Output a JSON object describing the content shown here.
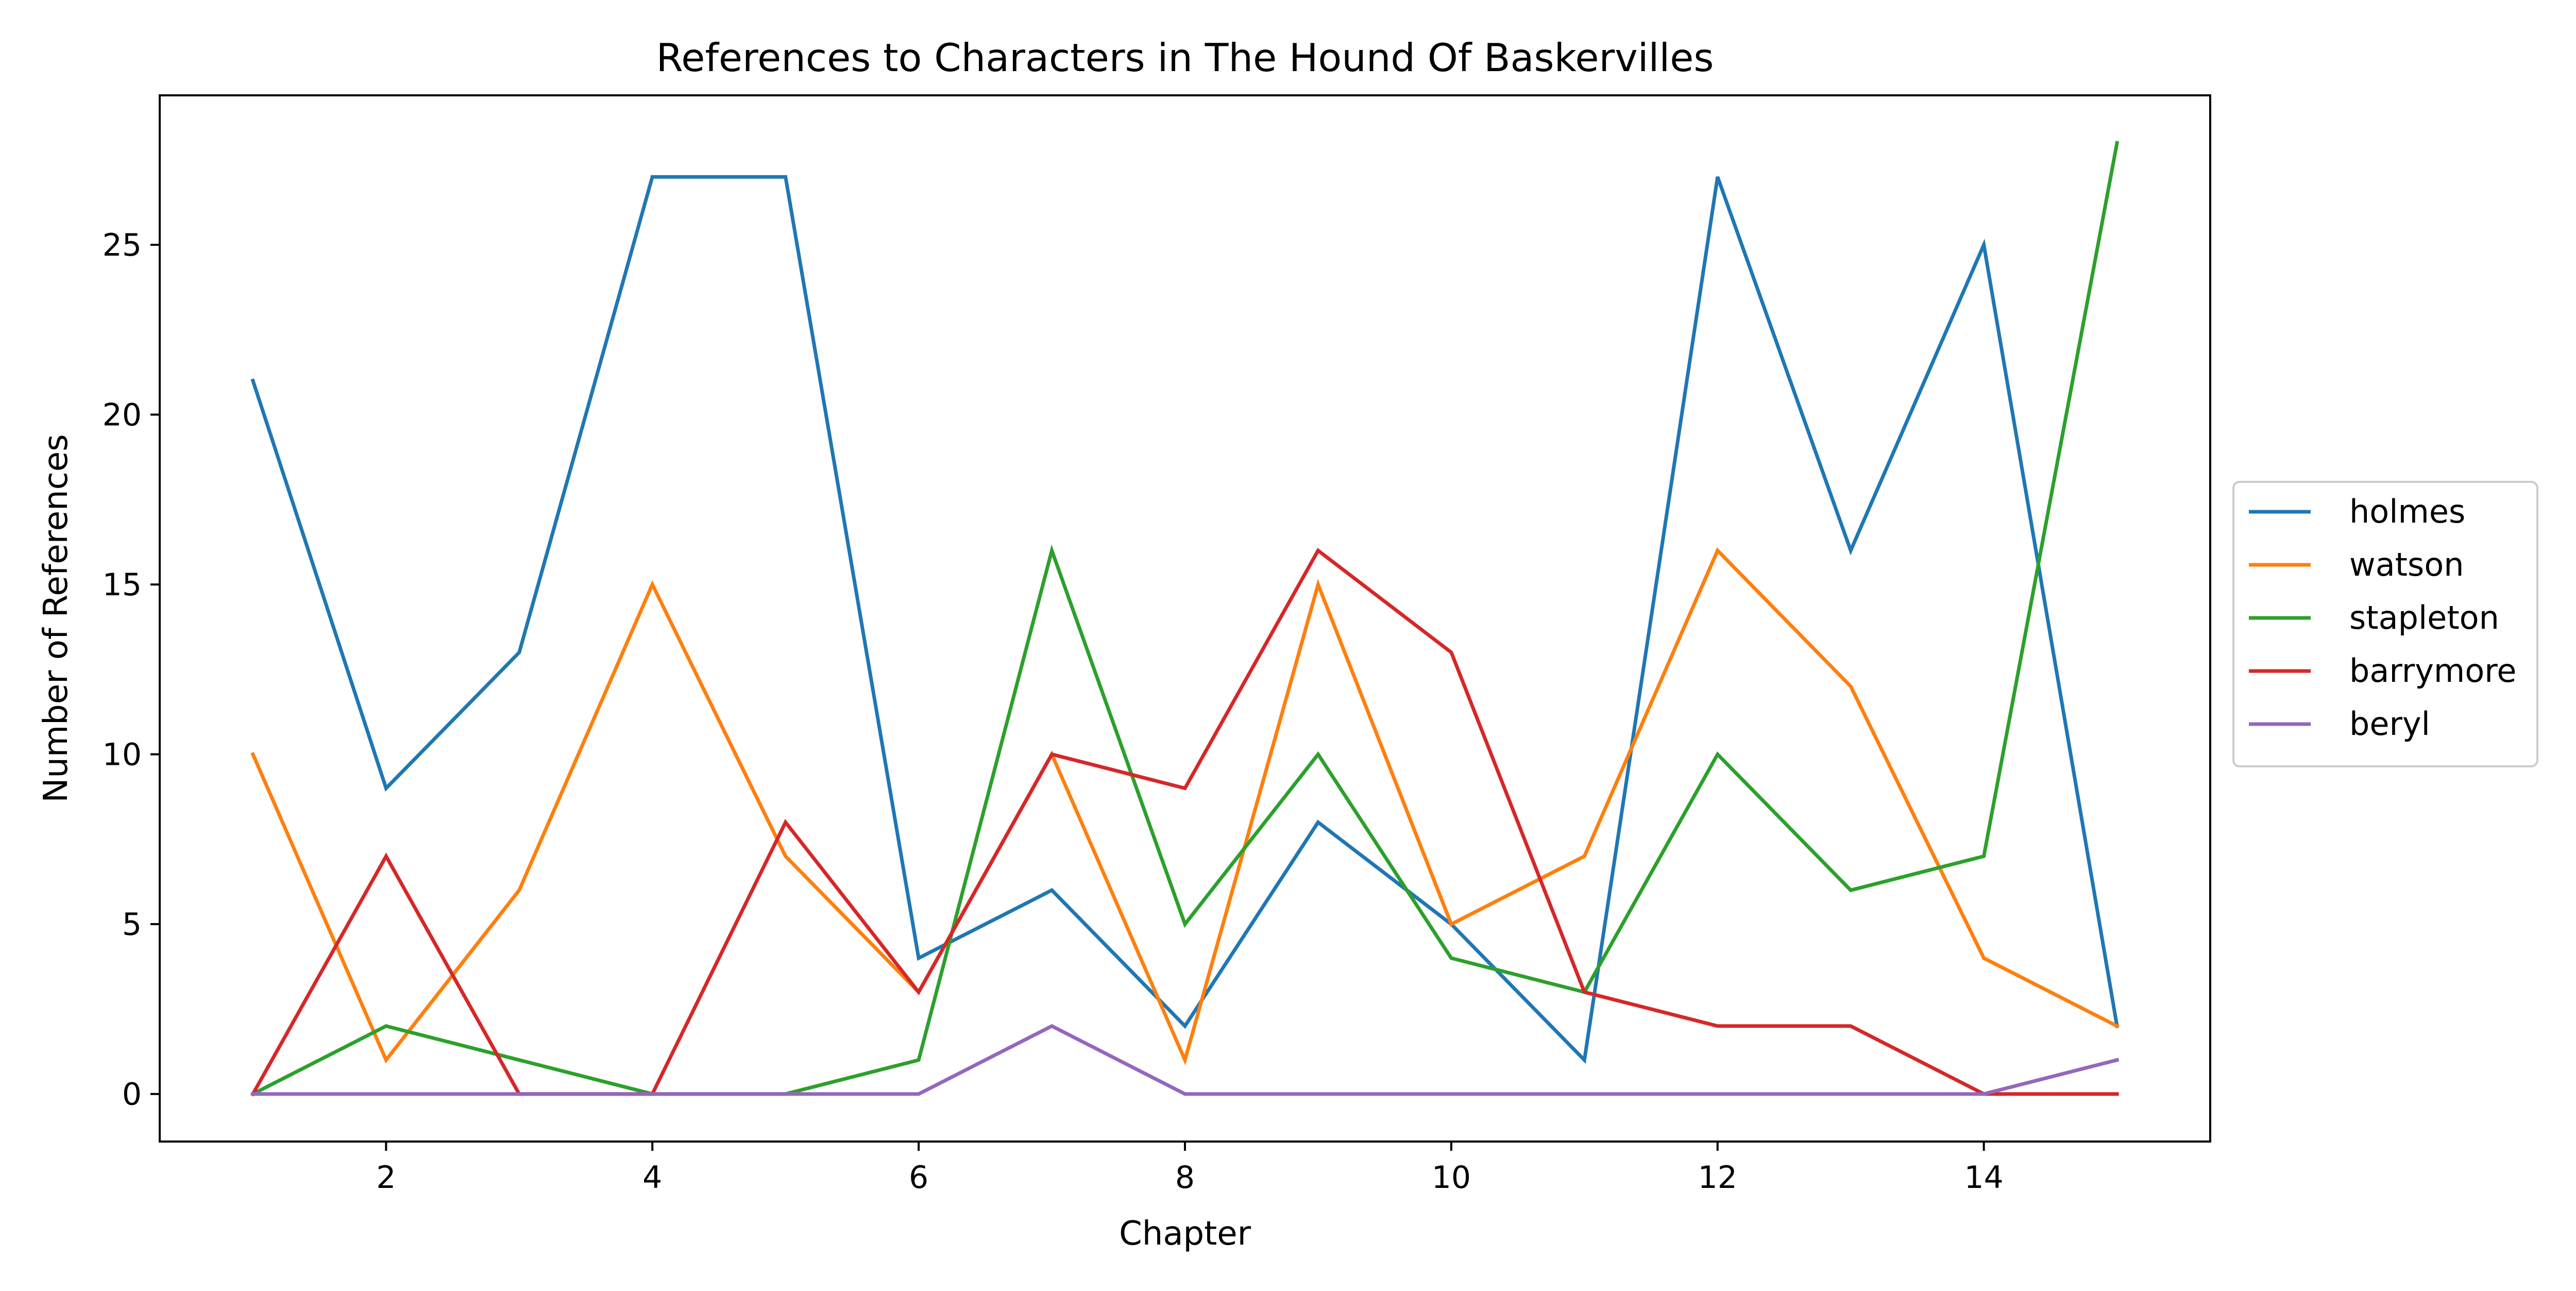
{
  "chart_data": {
    "type": "line",
    "title": "References to Characters in The Hound Of Baskervilles",
    "xlabel": "Chapter",
    "ylabel": "Number of References",
    "x": [
      1,
      2,
      3,
      4,
      5,
      6,
      7,
      8,
      9,
      10,
      11,
      12,
      13,
      14,
      15
    ],
    "xlim": [
      0.3,
      15.7
    ],
    "ylim": [
      -1.4,
      29.4
    ],
    "x_ticks": [
      2,
      4,
      6,
      8,
      10,
      12,
      14
    ],
    "y_ticks": [
      0,
      5,
      10,
      15,
      20,
      25
    ],
    "grid": false,
    "legend_position": "center-right outside",
    "series": [
      {
        "name": "holmes",
        "color": "#1f77b4",
        "values": [
          21,
          9,
          13,
          27,
          27,
          4,
          6,
          2,
          8,
          5,
          1,
          27,
          16,
          25,
          2
        ]
      },
      {
        "name": "watson",
        "color": "#ff7f0e",
        "values": [
          10,
          1,
          6,
          15,
          7,
          3,
          10,
          1,
          15,
          5,
          7,
          16,
          12,
          4,
          2
        ]
      },
      {
        "name": "stapleton",
        "color": "#2ca02c",
        "values": [
          0,
          2,
          1,
          0,
          0,
          1,
          16,
          5,
          10,
          4,
          3,
          10,
          6,
          7,
          28
        ]
      },
      {
        "name": "barrymore",
        "color": "#d62728",
        "values": [
          0,
          7,
          0,
          0,
          8,
          3,
          10,
          9,
          16,
          13,
          3,
          2,
          2,
          0,
          0
        ]
      },
      {
        "name": "beryl",
        "color": "#9467bd",
        "values": [
          0,
          0,
          0,
          0,
          0,
          0,
          2,
          0,
          0,
          0,
          0,
          0,
          0,
          0,
          1
        ]
      }
    ]
  }
}
